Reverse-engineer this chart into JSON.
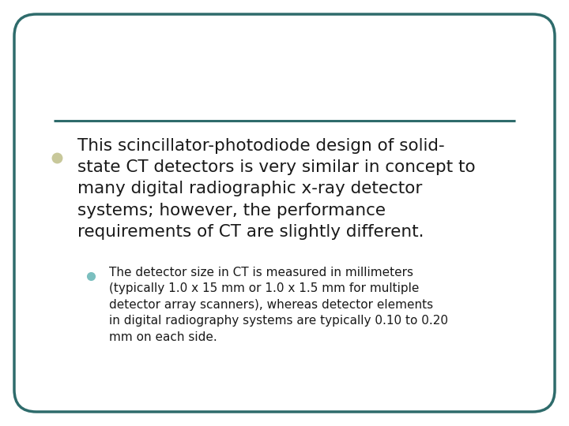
{
  "background_color": "#ffffff",
  "border_color": "#2e6b6b",
  "border_linewidth": 2.5,
  "line_color": "#2e6b6b",
  "bullet1_color": "#c8c89a",
  "bullet2_color": "#7bbfbf",
  "main_text_color": "#1a1a1a",
  "sub_text_color": "#1a1a1a",
  "main_text_fontsize": 15.5,
  "sub_text_fontsize": 11.0,
  "main_text": "This scincillator-photodiode design of solid-\nstate CT detectors is very similar in concept to\nmany digital radiographic x-ray detector\nsystems; however, the performance\nrequirements of CT are slightly different.",
  "sub_text": "The detector size in CT is measured in millimeters\n(typically 1.0 x 15 mm or 1.0 x 1.5 mm for multiple\ndetector array scanners), whereas detector elements\nin digital radiography systems are typically 0.10 to 0.20\nmm on each side."
}
